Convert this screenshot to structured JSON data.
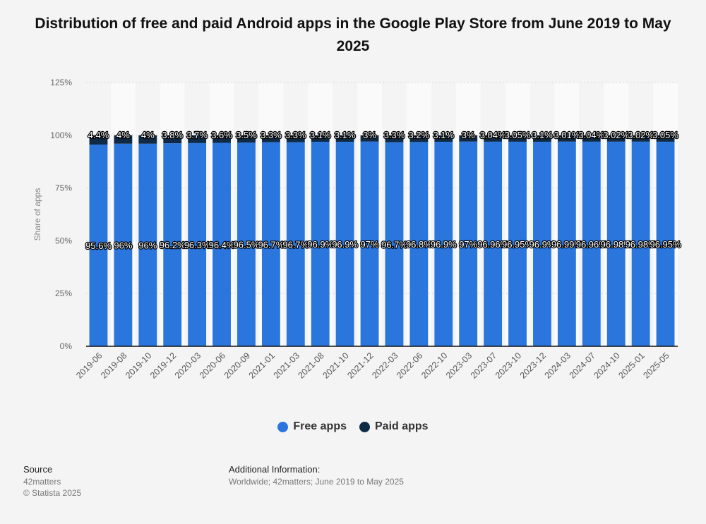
{
  "title": "Distribution of free and paid Android apps in the Google Play Store from June 2019 to May 2025",
  "footer": {
    "source_label": "Source",
    "source_value": "42matters",
    "copyright": "© Statista 2025",
    "info_label": "Additional Information:",
    "info_value": "Worldwide; 42matters; June 2019 to May 2025"
  },
  "colors": {
    "free": "#2a76dd",
    "paid": "#0e2a47",
    "background": "#f4f4f4",
    "band": "#fafafa"
  },
  "chart_data": {
    "type": "bar",
    "stacked": true,
    "ylabel": "Share of apps",
    "xlabel": "",
    "ylim": [
      0,
      125
    ],
    "yticks": [
      "0%",
      "25%",
      "50%",
      "75%",
      "100%",
      "125%"
    ],
    "grid": true,
    "legend_position": "bottom",
    "categories": [
      "2019-06",
      "2019-08",
      "2019-10",
      "2019-12",
      "2020-03",
      "2020-06",
      "2020-09",
      "2021-01",
      "2021-03",
      "2021-08",
      "2021-10",
      "2021-12",
      "2022-03",
      "2022-06",
      "2022-10",
      "2023-03",
      "2023-07",
      "2023-10",
      "2023-12",
      "2024-03",
      "2024-07",
      "2024-10",
      "2025-01",
      "2025-05"
    ],
    "series": [
      {
        "name": "Free apps",
        "values": [
          95.6,
          96,
          96,
          96.2,
          96.3,
          96.4,
          96.5,
          96.7,
          96.7,
          96.9,
          96.9,
          97,
          96.7,
          96.8,
          96.9,
          97,
          96.96,
          96.95,
          96.9,
          96.99,
          96.96,
          96.98,
          96.98,
          96.95
        ],
        "labels": [
          "95.6%",
          "96%",
          "96%",
          "96.2%",
          "96.3%",
          "96.4%",
          "96.5%",
          "96.7%",
          "96.7%",
          "96.9%",
          "96.9%",
          "97%",
          "96.7%",
          "96.8%",
          "96.9%",
          "97%",
          "96.96%",
          "96.95%",
          "96.9%",
          "96.99%",
          "96.96%",
          "96.98%",
          "96.98%",
          "96.95%"
        ]
      },
      {
        "name": "Paid apps",
        "values": [
          4.4,
          4,
          4,
          3.8,
          3.7,
          3.6,
          3.5,
          3.3,
          3.3,
          3.1,
          3.1,
          3,
          3.3,
          3.2,
          3.1,
          3,
          3.04,
          3.05,
          3.1,
          3.01,
          3.04,
          3.02,
          3.02,
          3.05
        ],
        "labels": [
          "4.4%",
          "4%",
          "4%",
          "3.8%",
          "3.7%",
          "3.6%",
          "3.5%",
          "3.3%",
          "3.3%",
          "3.1%",
          "3.1%",
          "3%",
          "3.3%",
          "3.2%",
          "3.1%",
          "3%",
          "3.04%",
          "3.05%",
          "3.1%",
          "3.01%",
          "3.04%",
          "3.02%",
          "3.02%",
          "3.05%"
        ]
      }
    ]
  }
}
